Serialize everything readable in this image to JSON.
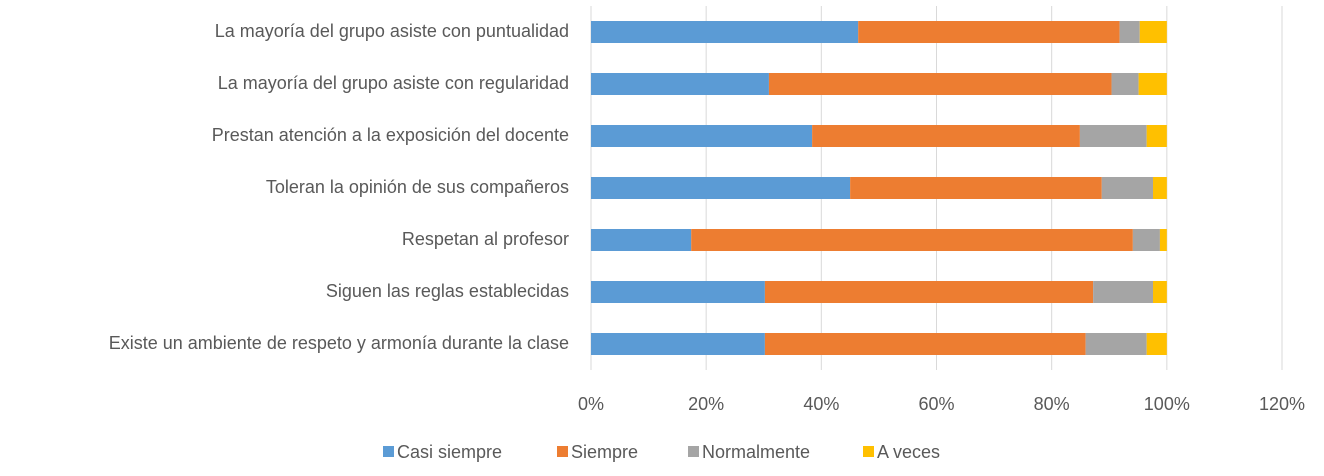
{
  "chart_data": {
    "type": "stacked-bar-horizontal",
    "categories": [
      "La mayoría del grupo asiste con puntualidad",
      "La mayoría del grupo asiste con regularidad",
      "Prestan atención a la exposición del docente",
      "Toleran la opinión de sus compañeros",
      "Respetan al profesor",
      "Siguen las reglas establecidas",
      "Existe un ambiente de respeto y armonía durante la clase"
    ],
    "series": [
      {
        "name": "Casi siempre",
        "color": "#5b9bd5",
        "values": [
          46.4,
          30.9,
          38.4,
          45.0,
          17.4,
          30.2,
          30.2
        ]
      },
      {
        "name": "Siempre",
        "color": "#ed7d31",
        "values": [
          45.4,
          59.5,
          46.5,
          43.7,
          76.7,
          57.0,
          55.7
        ]
      },
      {
        "name": "Normalmente",
        "color": "#a5a5a5",
        "values": [
          3.5,
          4.7,
          11.6,
          8.9,
          4.7,
          10.4,
          10.6
        ]
      },
      {
        "name": "A veces",
        "color": "#ffc000",
        "values": [
          4.7,
          4.9,
          3.5,
          2.4,
          1.2,
          2.4,
          3.5
        ]
      }
    ],
    "xlim": [
      0,
      120
    ],
    "xticks": [
      {
        "value": 0,
        "label": "0%"
      },
      {
        "value": 20,
        "label": "20%"
      },
      {
        "value": 40,
        "label": "40%"
      },
      {
        "value": 60,
        "label": "60%"
      },
      {
        "value": 80,
        "label": "80%"
      },
      {
        "value": 100,
        "label": "100%"
      },
      {
        "value": 120,
        "label": "120%"
      }
    ],
    "grid": true,
    "legend": "bottom"
  }
}
